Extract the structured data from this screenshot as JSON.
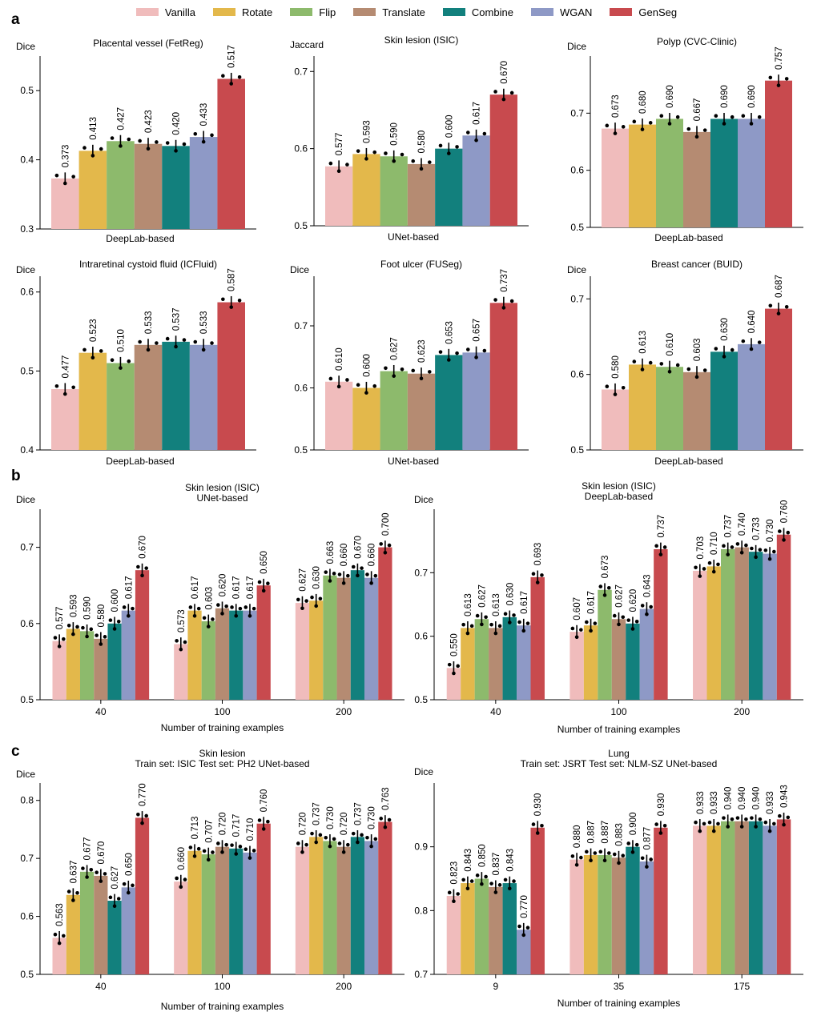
{
  "legend": [
    {
      "name": "Vanilla",
      "color": "#F0BCBC"
    },
    {
      "name": "Rotate",
      "color": "#E3B84B"
    },
    {
      "name": "Flip",
      "color": "#8DBA6C"
    },
    {
      "name": "Translate",
      "color": "#B58B72"
    },
    {
      "name": "Combine",
      "color": "#12807D"
    },
    {
      "name": "WGAN",
      "color": "#8E99C6"
    },
    {
      "name": "GenSeg",
      "color": "#C84A4E"
    }
  ],
  "panel_labels": [
    "a",
    "b",
    "c"
  ],
  "chart_data": [
    {
      "type": "bar",
      "title": "Placental vessel (FetReg)",
      "ylabel": "Dice",
      "xlabel": "DeepLab-based",
      "ylim": [
        0.3,
        0.55
      ],
      "yticks": [
        0.3,
        0.4,
        0.5
      ],
      "groups": [
        {
          "label": "",
          "values": [
            0.373,
            0.413,
            0.427,
            0.423,
            0.42,
            0.433,
            0.517
          ],
          "labels": [
            "0.373",
            "0.413",
            "0.427",
            "0.423",
            "0.420",
            "0.433",
            "0.517"
          ]
        }
      ]
    },
    {
      "type": "bar",
      "title": "Skin lesion (ISIC)",
      "ylabel": "Jaccard",
      "xlabel": "UNet-based",
      "ylim": [
        0.5,
        0.72
      ],
      "yticks": [
        0.5,
        0.6,
        0.7
      ],
      "groups": [
        {
          "label": "",
          "values": [
            0.577,
            0.593,
            0.59,
            0.58,
            0.6,
            0.617,
            0.67
          ],
          "labels": [
            "0.577",
            "0.593",
            "0.590",
            "0.580",
            "0.600",
            "0.617",
            "0.670"
          ]
        }
      ]
    },
    {
      "type": "bar",
      "title": "Polyp (CVC-Clinic)",
      "ylabel": "Dice",
      "xlabel": "DeepLab-based",
      "ylim": [
        0.5,
        0.8
      ],
      "yticks": [
        0.5,
        0.6,
        0.7
      ],
      "groups": [
        {
          "label": "",
          "values": [
            0.673,
            0.68,
            0.69,
            0.667,
            0.69,
            0.69,
            0.757
          ],
          "labels": [
            "0.673",
            "0.680",
            "0.690",
            "0.667",
            "0.690",
            "0.690",
            "0.757"
          ]
        }
      ]
    },
    {
      "type": "bar",
      "title": "Intraretinal cystoid fluid (ICFluid)",
      "ylabel": "Dice",
      "xlabel": "DeepLab-based",
      "ylim": [
        0.4,
        0.62
      ],
      "yticks": [
        0.4,
        0.5,
        0.6
      ],
      "groups": [
        {
          "label": "",
          "values": [
            0.477,
            0.523,
            0.51,
            0.533,
            0.537,
            0.533,
            0.587
          ],
          "labels": [
            "0.477",
            "0.523",
            "0.510",
            "0.533",
            "0.537",
            "0.533",
            "0.587"
          ]
        }
      ]
    },
    {
      "type": "bar",
      "title": "Foot ulcer (FUSeg)",
      "ylabel": "Dice",
      "xlabel": "UNet-based",
      "ylim": [
        0.5,
        0.78
      ],
      "yticks": [
        0.5,
        0.6,
        0.7
      ],
      "groups": [
        {
          "label": "",
          "values": [
            0.61,
            0.6,
            0.627,
            0.623,
            0.653,
            0.657,
            0.737
          ],
          "labels": [
            "0.610",
            "0.600",
            "0.627",
            "0.623",
            "0.653",
            "0.657",
            "0.737"
          ]
        }
      ]
    },
    {
      "type": "bar",
      "title": "Breast cancer (BUID)",
      "ylabel": "Dice",
      "xlabel": "DeepLab-based",
      "ylim": [
        0.5,
        0.73
      ],
      "yticks": [
        0.5,
        0.6,
        0.7
      ],
      "groups": [
        {
          "label": "",
          "values": [
            0.58,
            0.613,
            0.61,
            0.603,
            0.63,
            0.64,
            0.687
          ],
          "labels": [
            "0.580",
            "0.613",
            "0.610",
            "0.603",
            "0.630",
            "0.640",
            "0.687"
          ]
        }
      ]
    },
    {
      "type": "bar",
      "title": "Skin lesion (ISIC)\nUNet-based",
      "ylabel": "Dice",
      "xlabel": "Number of training examples",
      "ylim": [
        0.5,
        0.75
      ],
      "yticks": [
        0.5,
        0.6,
        0.7
      ],
      "groups": [
        {
          "label": "40",
          "values": [
            0.577,
            0.593,
            0.59,
            0.58,
            0.6,
            0.617,
            0.67
          ],
          "labels": [
            "0.577",
            "0.593",
            "0.590",
            "0.580",
            "0.600",
            "0.617",
            "0.670"
          ]
        },
        {
          "label": "100",
          "values": [
            0.573,
            0.617,
            0.603,
            0.62,
            0.617,
            0.617,
            0.65
          ],
          "labels": [
            "0.573",
            "0.617",
            "0.603",
            "0.620",
            "0.617",
            "0.617",
            "0.650"
          ]
        },
        {
          "label": "200",
          "values": [
            0.627,
            0.63,
            0.663,
            0.66,
            0.67,
            0.66,
            0.7
          ],
          "labels": [
            "0.627",
            "0.630",
            "0.663",
            "0.660",
            "0.670",
            "0.660",
            "0.700"
          ]
        }
      ]
    },
    {
      "type": "bar",
      "title": "Skin lesion (ISIC)\nDeepLab-based",
      "ylabel": "Dice",
      "xlabel": "Number of training examples",
      "ylim": [
        0.5,
        0.8
      ],
      "yticks": [
        0.5,
        0.6,
        0.7
      ],
      "groups": [
        {
          "label": "40",
          "values": [
            0.55,
            0.613,
            0.627,
            0.613,
            0.63,
            0.617,
            0.693
          ],
          "labels": [
            "0.550",
            "0.613",
            "0.627",
            "0.613",
            "0.630",
            "0.617",
            "0.693"
          ]
        },
        {
          "label": "100",
          "values": [
            0.607,
            0.617,
            0.673,
            0.627,
            0.62,
            0.643,
            0.737
          ],
          "labels": [
            "0.607",
            "0.617",
            "0.673",
            "0.627",
            "0.620",
            "0.643",
            "0.737"
          ]
        },
        {
          "label": "200",
          "values": [
            0.703,
            0.71,
            0.737,
            0.74,
            0.733,
            0.73,
            0.76
          ],
          "labels": [
            "0.703",
            "0.710",
            "0.737",
            "0.740",
            "0.733",
            "0.730",
            "0.760"
          ]
        }
      ]
    },
    {
      "type": "bar",
      "title": "Skin lesion\nTrain set: ISIC Test set: PH2 UNet-based",
      "ylabel": "Dice",
      "xlabel": "Number of training examples",
      "ylim": [
        0.5,
        0.83
      ],
      "yticks": [
        0.5,
        0.6,
        0.7,
        0.8
      ],
      "groups": [
        {
          "label": "40",
          "values": [
            0.563,
            0.637,
            0.677,
            0.67,
            0.627,
            0.65,
            0.77
          ],
          "labels": [
            "0.563",
            "0.637",
            "0.677",
            "0.670",
            "0.627",
            "0.650",
            "0.770"
          ]
        },
        {
          "label": "100",
          "values": [
            0.66,
            0.713,
            0.707,
            0.72,
            0.717,
            0.71,
            0.76
          ],
          "labels": [
            "0.660",
            "0.713",
            "0.707",
            "0.720",
            "0.717",
            "0.710",
            "0.760"
          ]
        },
        {
          "label": "200",
          "values": [
            0.72,
            0.737,
            0.73,
            0.72,
            0.737,
            0.73,
            0.763
          ],
          "labels": [
            "0.720",
            "0.737",
            "0.730",
            "0.720",
            "0.737",
            "0.730",
            "0.763"
          ]
        }
      ]
    },
    {
      "type": "bar",
      "title": "Lung\nTrain set: JSRT Test set: NLM-SZ UNet-based",
      "ylabel": "Dice",
      "xlabel": "Number of training examples",
      "ylim": [
        0.7,
        1.0
      ],
      "yticks": [
        0.7,
        0.8,
        0.9
      ],
      "groups": [
        {
          "label": "9",
          "values": [
            0.823,
            0.843,
            0.85,
            0.837,
            0.843,
            0.77,
            0.93
          ],
          "labels": [
            "0.823",
            "0.843",
            "0.850",
            "0.837",
            "0.843",
            "0.770",
            "0.930"
          ]
        },
        {
          "label": "35",
          "values": [
            0.88,
            0.887,
            0.887,
            0.883,
            0.9,
            0.877,
            0.93
          ],
          "labels": [
            "0.880",
            "0.887",
            "0.887",
            "0.883",
            "0.900",
            "0.877",
            "0.930"
          ]
        },
        {
          "label": "175",
          "values": [
            0.933,
            0.933,
            0.94,
            0.94,
            0.94,
            0.933,
            0.943
          ],
          "labels": [
            "0.933",
            "0.933",
            "0.940",
            "0.940",
            "0.940",
            "0.933",
            "0.943"
          ]
        }
      ]
    }
  ]
}
